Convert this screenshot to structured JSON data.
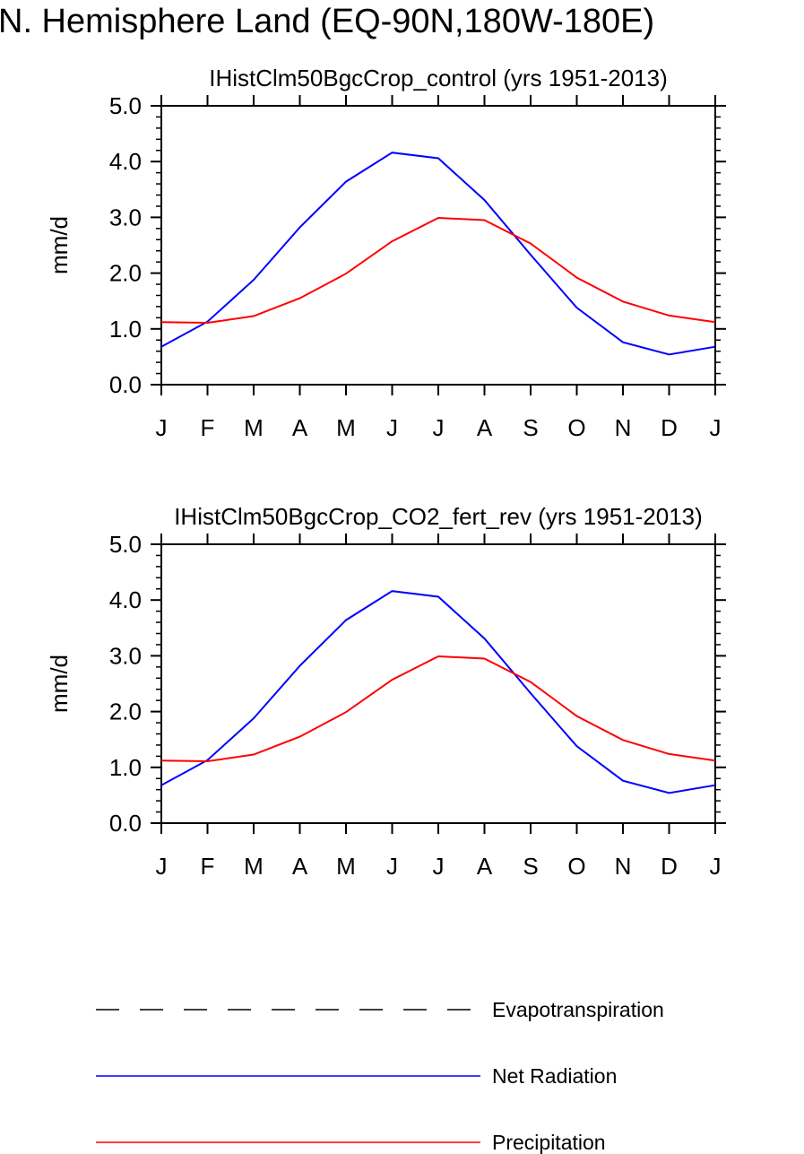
{
  "figure": {
    "title": "N. Hemisphere Land (EQ-90N,180W-180E)"
  },
  "legend": {
    "items": [
      {
        "label": "Evapotranspiration",
        "color": "#000000",
        "style": "dashed"
      },
      {
        "label": "Net Radiation",
        "color": "#0000ff",
        "style": "solid"
      },
      {
        "label": "Precipitation",
        "color": "#ff0000",
        "style": "solid"
      }
    ]
  },
  "chart_data": [
    {
      "type": "line",
      "title": "IHistClm50BgcCrop_control (yrs 1951-2013)",
      "xlabel": "",
      "ylabel": "mm/d",
      "categories": [
        "J",
        "F",
        "M",
        "A",
        "M",
        "J",
        "J",
        "A",
        "S",
        "O",
        "N",
        "D",
        "J"
      ],
      "yticks": [
        "0.0",
        "1.0",
        "2.0",
        "3.0",
        "4.0",
        "5.0"
      ],
      "ylim": [
        0,
        5
      ],
      "grid": false,
      "series": [
        {
          "name": "Net Radiation",
          "color": "#0000ff",
          "values": [
            0.68,
            1.13,
            1.88,
            2.82,
            3.64,
            4.16,
            4.06,
            3.31,
            2.33,
            1.38,
            0.76,
            0.54,
            0.68
          ]
        },
        {
          "name": "Precipitation",
          "color": "#ff0000",
          "values": [
            1.12,
            1.11,
            1.23,
            1.55,
            1.99,
            2.57,
            2.99,
            2.95,
            2.53,
            1.92,
            1.49,
            1.24,
            1.12
          ]
        }
      ]
    },
    {
      "type": "line",
      "title": "IHistClm50BgcCrop_CO2_fert_rev (yrs 1951-2013)",
      "xlabel": "",
      "ylabel": "mm/d",
      "categories": [
        "J",
        "F",
        "M",
        "A",
        "M",
        "J",
        "J",
        "A",
        "S",
        "O",
        "N",
        "D",
        "J"
      ],
      "yticks": [
        "0.0",
        "1.0",
        "2.0",
        "3.0",
        "4.0",
        "5.0"
      ],
      "ylim": [
        0,
        5
      ],
      "grid": false,
      "series": [
        {
          "name": "Net Radiation",
          "color": "#0000ff",
          "values": [
            0.68,
            1.13,
            1.88,
            2.82,
            3.64,
            4.16,
            4.06,
            3.31,
            2.33,
            1.38,
            0.76,
            0.54,
            0.68
          ]
        },
        {
          "name": "Precipitation",
          "color": "#ff0000",
          "values": [
            1.12,
            1.11,
            1.23,
            1.55,
            1.99,
            2.57,
            2.99,
            2.95,
            2.53,
            1.92,
            1.49,
            1.24,
            1.12
          ]
        }
      ]
    }
  ]
}
